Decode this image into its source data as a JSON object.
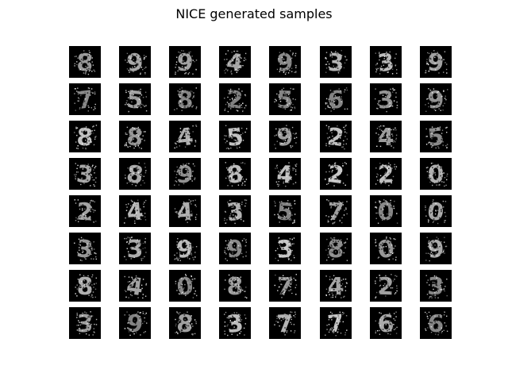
{
  "figure": {
    "title": "NICE generated samples"
  },
  "samples": {
    "rows": 8,
    "cols": 8,
    "digits": [
      "8",
      "9",
      "9",
      "4",
      "9",
      "3",
      "3",
      "9",
      "7",
      "5",
      "8",
      "2",
      "5",
      "6",
      "3",
      "9",
      "8",
      "8",
      "4",
      "5",
      "9",
      "2",
      "4",
      "5",
      "3",
      "8",
      "9",
      "8",
      "4",
      "2",
      "2",
      "0",
      "2",
      "4",
      "4",
      "3",
      "5",
      "7",
      "0",
      "0",
      "3",
      "3",
      "9",
      "9",
      "3",
      "8",
      "0",
      "9",
      "8",
      "4",
      "0",
      "8",
      "7",
      "4",
      "2",
      "3",
      "3",
      "9",
      "8",
      "3",
      "7",
      "7",
      "6",
      "6"
    ],
    "colormap": "gray"
  }
}
